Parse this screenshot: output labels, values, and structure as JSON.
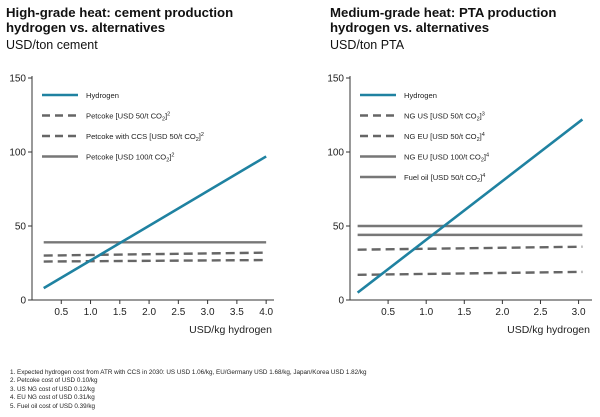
{
  "chart_data": [
    {
      "type": "line",
      "title": "High-grade heat: cement production hydrogen vs. alternatives",
      "title_lines": [
        "High-grade heat: cement production",
        "hydrogen vs. alternatives"
      ],
      "subtitle": "USD/ton cement",
      "xlabel": "USD/kg hydrogen",
      "ylabel": "",
      "xlim": [
        0,
        4.1
      ],
      "ylim": [
        0,
        150
      ],
      "xticks": [
        "0.5",
        "1.0",
        "1.5",
        "2.0",
        "2.5",
        "3.0",
        "3.5",
        "4.0"
      ],
      "xtick_values": [
        0.5,
        1.0,
        1.5,
        2.0,
        2.5,
        3.0,
        3.5,
        4.0
      ],
      "yticks": [
        "0",
        "50",
        "100",
        "150"
      ],
      "ytick_values": [
        0,
        50,
        100,
        150
      ],
      "legend_position": "top-left",
      "series": [
        {
          "name": "Hydrogen",
          "sup": "",
          "color": "#1f82a1",
          "style": "solid",
          "x": [
            0.2,
            4.0
          ],
          "y": [
            8,
            97
          ]
        },
        {
          "name": "Petcoke [USD 50/t CO",
          "sup": "2",
          "name_tail": "]",
          "note": "2",
          "color": "#666666",
          "style": "dashed",
          "x": [
            0.2,
            4.0
          ],
          "y": [
            30,
            32
          ]
        },
        {
          "name": "Petcoke with CCS [USD 50/t CO",
          "sup": "2",
          "name_tail": "]",
          "note": "2",
          "color": "#666666",
          "style": "dashed",
          "x": [
            0.2,
            4.0
          ],
          "y": [
            26,
            27
          ]
        },
        {
          "name": "Petcoke [USD 100/t CO",
          "sup": "2",
          "name_tail": "]",
          "note": "2",
          "color": "#777777",
          "style": "solid",
          "x": [
            0.2,
            4.0
          ],
          "y": [
            39,
            39
          ]
        }
      ]
    },
    {
      "type": "line",
      "title": "Medium-grade heat: PTA production hydrogen vs. alternatives",
      "title_lines": [
        "Medium-grade heat: PTA production",
        "hydrogen vs. alternatives"
      ],
      "subtitle": "USD/ton PTA",
      "xlabel": "USD/kg hydrogen",
      "ylabel": "",
      "xlim": [
        0,
        3.15
      ],
      "ylim": [
        0,
        150
      ],
      "xticks": [
        "0.5",
        "1.0",
        "1.5",
        "2.0",
        "2.5",
        "3.0"
      ],
      "xtick_values": [
        0.5,
        1.0,
        1.5,
        2.0,
        2.5,
        3.0
      ],
      "yticks": [
        "0",
        "50",
        "100",
        "150"
      ],
      "ytick_values": [
        0,
        50,
        100,
        150
      ],
      "legend_position": "top-left",
      "series": [
        {
          "name": "Hydrogen",
          "sup": "",
          "color": "#1f82a1",
          "style": "solid",
          "x": [
            0.1,
            3.05
          ],
          "y": [
            5,
            122
          ]
        },
        {
          "name": "NG US [USD 50/t CO",
          "sup": "2",
          "name_tail": "]",
          "note": "3",
          "color": "#666666",
          "style": "dashed",
          "x": [
            0.1,
            3.05
          ],
          "y": [
            17,
            19
          ]
        },
        {
          "name": "NG EU [USD 50/t CO",
          "sup": "2",
          "name_tail": "]",
          "note": "4",
          "color": "#666666",
          "style": "dashed",
          "x": [
            0.1,
            3.05
          ],
          "y": [
            34,
            36
          ]
        },
        {
          "name": "NG EU [USD 100/t CO",
          "sup": "2",
          "name_tail": "]",
          "note": "4",
          "color": "#777777",
          "style": "solid",
          "x": [
            0.1,
            3.05
          ],
          "y": [
            44,
            44
          ]
        },
        {
          "name": "Fuel oil [USD 50/t CO",
          "sup": "2",
          "name_tail": "]",
          "note": "4",
          "color": "#777777",
          "style": "solid",
          "x": [
            0.1,
            3.05
          ],
          "y": [
            50,
            50
          ]
        }
      ]
    }
  ],
  "footnotes": [
    "1.  Expected hydrogen cost from ATR with CCS in 2030: US USD 1.06/kg, EU/Germany USD 1.68/kg, Japan/Korea USD 1.82/kg",
    "2.  Petcoke cost of USD 0.10/kg",
    "3.  US NG cost of USD 0.12/kg",
    "4.  EU NG cost of USD 0.31/kg",
    "5.  Fuel oil cost of USD 0.39/kg"
  ]
}
